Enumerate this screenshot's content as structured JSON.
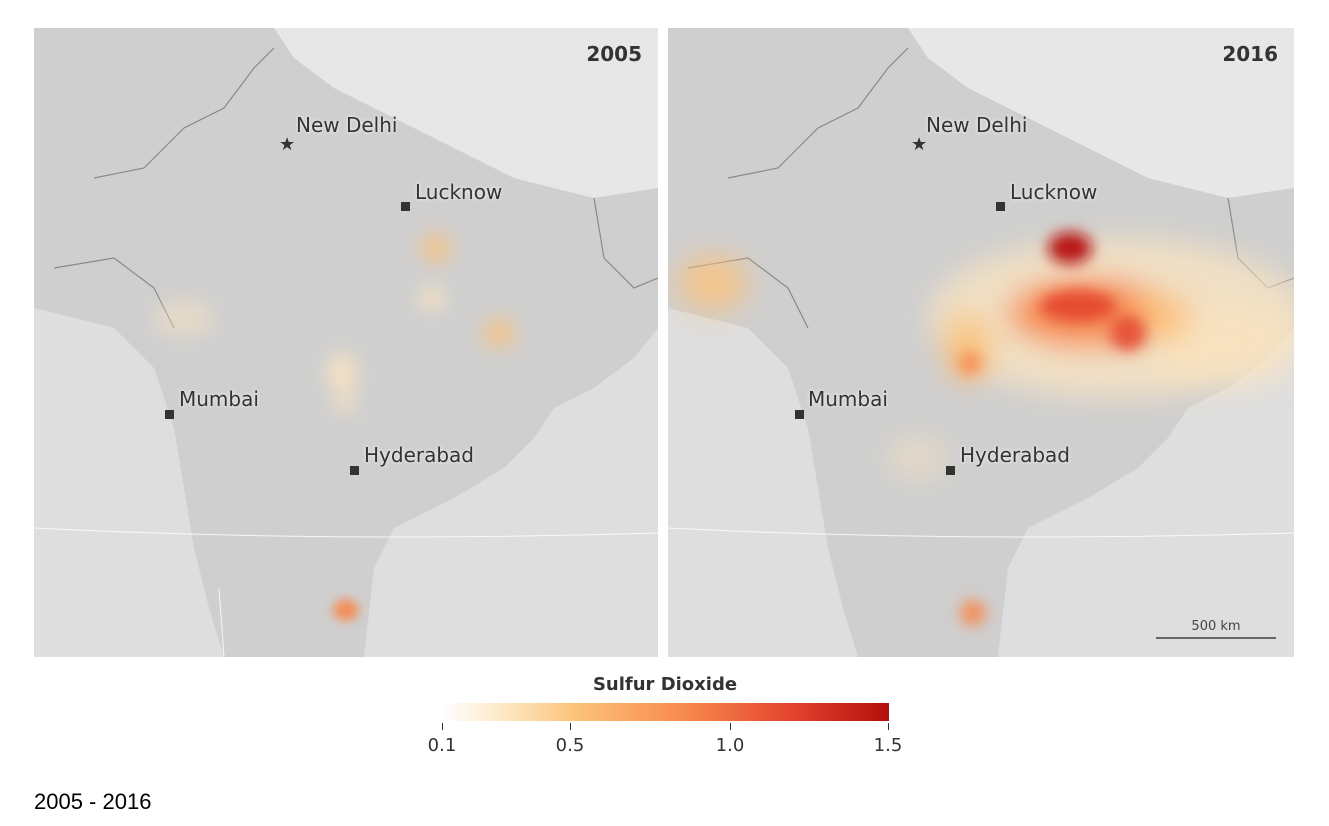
{
  "maps": [
    {
      "year": "2005",
      "cities": {
        "new_delhi": "New Delhi",
        "lucknow": "Lucknow",
        "mumbai": "Mumbai",
        "hyderabad": "Hyderabad"
      },
      "so2_level": "low"
    },
    {
      "year": "2016",
      "cities": {
        "new_delhi": "New Delhi",
        "lucknow": "Lucknow",
        "mumbai": "Mumbai",
        "hyderabad": "Hyderabad"
      },
      "scale_bar": "500 km",
      "so2_level": "high"
    }
  ],
  "legend": {
    "title": "Sulfur Dioxide",
    "ticks": [
      "0.1",
      "0.5",
      "1.0",
      "1.5"
    ],
    "colors": [
      "#ffffff",
      "#fde6bf",
      "#fcc27a",
      "#f7884c",
      "#e4442e",
      "#b50f0c"
    ]
  },
  "caption": "2005 - 2016",
  "colors": {
    "land": "#cfcfcf",
    "sea": "#dedede",
    "mountains": "#e9e9e9",
    "border": "#8a8a8a"
  }
}
